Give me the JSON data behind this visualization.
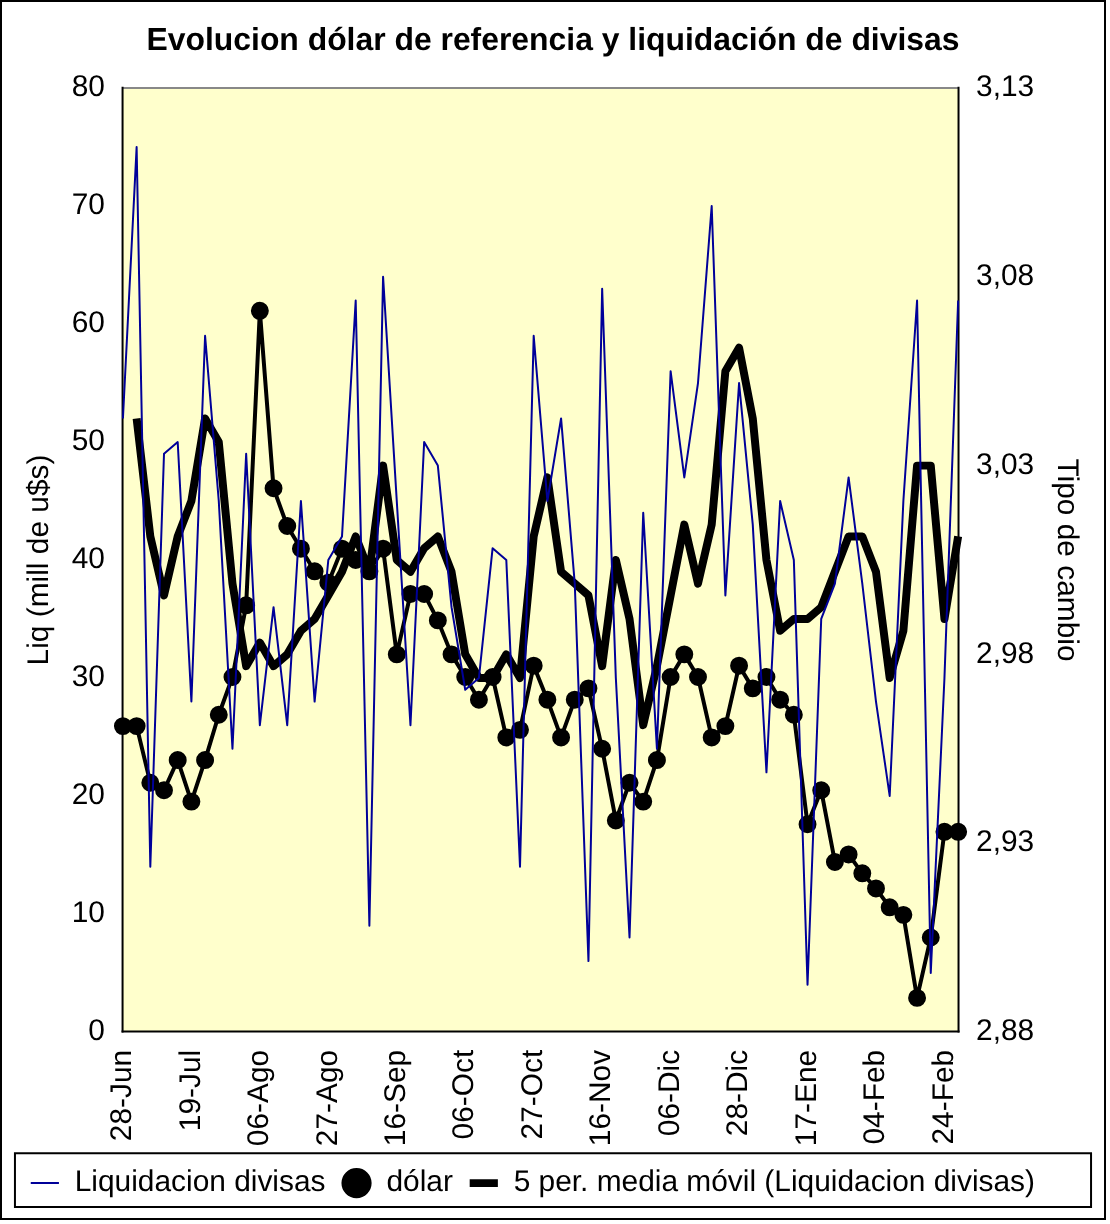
{
  "chart_data": {
    "type": "line",
    "title": "Evolucion dólar de referencia y liquidación de divisas",
    "ylabel": "Liq (mill de u$s)",
    "y2label": "Tipo de cambio",
    "categories": [
      "28-Jun",
      null,
      null,
      null,
      null,
      "19-Jul",
      null,
      null,
      null,
      null,
      "06-Ago",
      null,
      null,
      null,
      null,
      "27-Ago",
      null,
      null,
      null,
      null,
      "16-Sep",
      null,
      null,
      null,
      null,
      "06-Oct",
      null,
      null,
      null,
      null,
      "27-Oct",
      null,
      null,
      null,
      null,
      "16-Nov",
      null,
      null,
      null,
      null,
      "06-Dic",
      null,
      null,
      null,
      null,
      "28-Dic",
      null,
      null,
      null,
      null,
      "17-Ene",
      null,
      null,
      null,
      null,
      "04-Feb",
      null,
      null,
      null,
      null,
      "24-Feb",
      null
    ],
    "series": [
      {
        "name": "Liquidacion divisas",
        "color": "#000099",
        "marker": "none",
        "values": [
          52,
          75,
          14,
          49,
          50,
          28,
          59,
          45,
          24,
          49,
          26,
          36,
          26,
          45,
          28,
          40,
          42,
          62,
          9,
          64,
          45,
          26,
          50,
          48,
          36,
          29,
          30,
          41,
          40,
          14,
          59,
          45,
          52,
          38,
          6,
          63,
          30,
          8,
          44,
          24,
          56,
          47,
          55,
          70,
          37,
          55,
          43,
          22,
          45,
          40,
          4,
          35,
          38,
          47,
          38,
          28,
          20,
          45,
          62,
          5,
          30,
          62
        ]
      },
      {
        "name": "dólar",
        "color": "#000000",
        "marker": "circle",
        "axis": "y2",
        "values": [
          2.961,
          2.961,
          2.946,
          2.944,
          2.952,
          2.941,
          2.952,
          2.964,
          2.974,
          2.993,
          3.071,
          3.024,
          3.014,
          3.008,
          3.002,
          2.999,
          3.008,
          3.005,
          3.002,
          3.008,
          2.98,
          2.996,
          2.996,
          2.989,
          2.98,
          2.974,
          2.968,
          2.974,
          2.958,
          2.96,
          2.977,
          2.968,
          2.958,
          2.968,
          2.971,
          2.955,
          2.936,
          2.946,
          2.941,
          2.952,
          2.974,
          2.98,
          2.974,
          2.958,
          2.961,
          2.977,
          2.971,
          2.974,
          2.968,
          2.964,
          2.935,
          2.944,
          2.925,
          2.927,
          2.922,
          2.918,
          2.913,
          2.911,
          2.889,
          2.905,
          2.933,
          2.933
        ]
      },
      {
        "name": "5 per. media móvil (Liquidacion divisas)",
        "color": "#000000",
        "marker": "none",
        "values": [
          null,
          52,
          42,
          37,
          42,
          45,
          52,
          50,
          38,
          31,
          33,
          31,
          32,
          34,
          35,
          37,
          39,
          42,
          39,
          48,
          40,
          39,
          41,
          42,
          39,
          32,
          30,
          30,
          32,
          30,
          42,
          47,
          39,
          38,
          37,
          31,
          40,
          35,
          26,
          31,
          37,
          43,
          38,
          43,
          56,
          58,
          52,
          40,
          34,
          35,
          35,
          36,
          39,
          42,
          42,
          39,
          30,
          34,
          48,
          48,
          35,
          42
        ]
      }
    ],
    "ylim": [
      0,
      80
    ],
    "yticks": [
      0,
      10,
      20,
      30,
      40,
      50,
      60,
      70,
      80
    ],
    "y2lim": [
      2.88,
      3.13
    ],
    "y2ticks": [
      {
        "value": 2.88,
        "label": "2,88"
      },
      {
        "value": 2.93,
        "label": "2,93"
      },
      {
        "value": 2.98,
        "label": "2,98"
      },
      {
        "value": 3.03,
        "label": "3,03"
      },
      {
        "value": 3.08,
        "label": "3,08"
      },
      {
        "value": 3.13,
        "label": "3,13"
      }
    ],
    "legend": "bottom"
  }
}
